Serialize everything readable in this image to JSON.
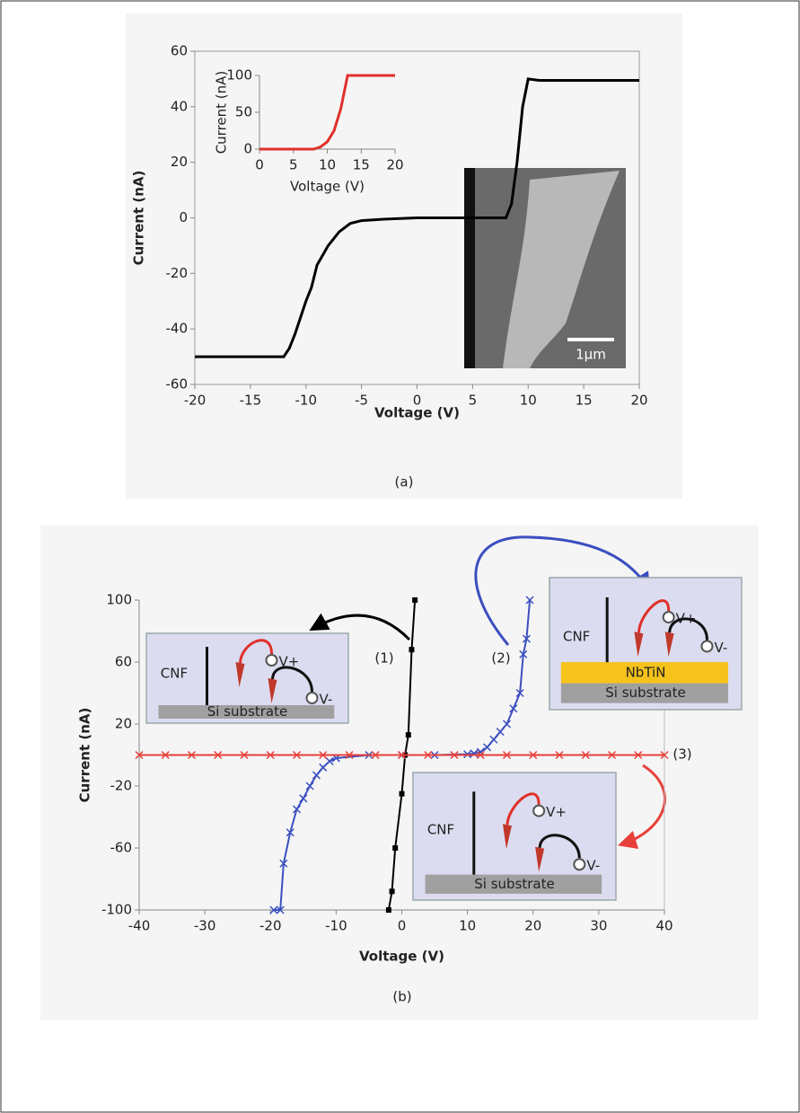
{
  "chart_data": [
    {
      "type": "line",
      "xlabel": "Voltage (V)",
      "ylabel": "Current (nA)",
      "caption": "(a)",
      "xlim": [
        -20,
        20
      ],
      "ylim": [
        -60,
        60
      ],
      "xticks": [
        -20,
        -15,
        -10,
        -5,
        0,
        5,
        10,
        15,
        20
      ],
      "yticks": [
        -60,
        -40,
        -20,
        0,
        20,
        40,
        60
      ],
      "series": [
        {
          "color": "#000000",
          "x": [
            -20,
            -12,
            -11.5,
            -11,
            -10,
            -9.5,
            -9,
            -8,
            -7,
            -6,
            -5,
            -3,
            0,
            5,
            8,
            8.5,
            9,
            9.5,
            10,
            11,
            15,
            20
          ],
          "values": [
            -50,
            -50,
            -47,
            -42,
            -30,
            -25,
            -17,
            -10,
            -5,
            -2,
            -1,
            -0.5,
            0,
            0,
            0,
            5,
            20,
            40,
            50,
            49.5,
            49.5,
            49.5
          ]
        }
      ],
      "image_label": "1μm",
      "inset": {
        "type": "line",
        "xlabel": "Voltage (V)",
        "ylabel": "Current (nA)",
        "xlim": [
          0,
          20
        ],
        "ylim": [
          0,
          100
        ],
        "xticks": [
          0,
          5,
          10,
          15,
          20
        ],
        "yticks": [
          0,
          50,
          100
        ],
        "series": [
          {
            "color": "#e0302a",
            "x": [
              0,
              5,
              8,
              9,
              10,
              11,
              12,
              13,
              15,
              20
            ],
            "values": [
              0,
              0,
              0,
              3,
              10,
              25,
              55,
              100,
              100,
              100
            ]
          }
        ]
      }
    },
    {
      "type": "line",
      "xlabel": "Voltage (V)",
      "ylabel": "Current (nA)",
      "caption": "(b)",
      "xlim": [
        -40,
        40
      ],
      "ylim": [
        -100,
        100
      ],
      "xticks": [
        -40,
        -30,
        -20,
        -10,
        0,
        10,
        20,
        30,
        40
      ],
      "yticks": [
        -100,
        -60,
        -20,
        20,
        60,
        100
      ],
      "series": [
        {
          "label": "(1)",
          "color": "#000000",
          "marker": "square",
          "x": [
            -2,
            -1.5,
            -1,
            0,
            0.5,
            1,
            1.5,
            2
          ],
          "values": [
            -100,
            -88,
            -60,
            -25,
            0,
            13,
            68,
            100
          ]
        },
        {
          "label": "(2)",
          "color": "#3b4fc0",
          "marker": "x",
          "x": [
            -19.5,
            -18.5,
            -18,
            -17,
            -16,
            -15,
            -14,
            -13,
            -12,
            -11,
            -10,
            -5,
            0,
            5,
            10,
            11,
            12,
            13,
            14,
            15,
            16,
            17,
            18,
            18.5,
            19,
            19.5
          ],
          "values": [
            -100,
            -100,
            -70,
            -50,
            -35,
            -28,
            -20,
            -13,
            -8,
            -4,
            -2,
            0,
            0,
            0,
            0.5,
            1,
            2,
            5,
            10,
            15,
            20,
            30,
            40,
            65,
            75,
            100
          ]
        },
        {
          "label": "(3)",
          "color": "#e8403a",
          "marker": "x",
          "x": [
            -40,
            -36,
            -32,
            -28,
            -24,
            -20,
            -16,
            -12,
            -8,
            -4,
            0,
            4,
            8,
            12,
            16,
            20,
            24,
            28,
            32,
            36,
            40
          ],
          "values": [
            0,
            0,
            0,
            0,
            0,
            0,
            0,
            0,
            0,
            0,
            0,
            0,
            0,
            0,
            0,
            0,
            0,
            0,
            0,
            0,
            0
          ]
        }
      ],
      "diagrams": [
        {
          "labels": [
            "CNF",
            "V+",
            "V-",
            "Si substrate"
          ]
        },
        {
          "labels": [
            "CNF",
            "V+",
            "V-",
            "Si substrate",
            "NbTiN"
          ]
        },
        {
          "labels": [
            "CNF",
            "V+",
            "V-",
            "Si substrate"
          ]
        }
      ]
    }
  ]
}
